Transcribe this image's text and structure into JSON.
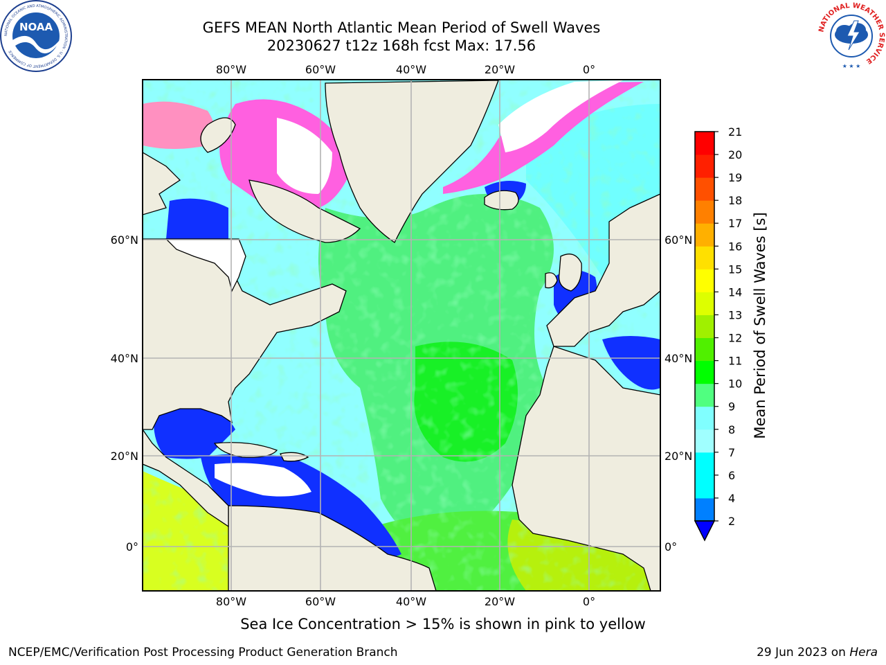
{
  "title": {
    "line1": "GEFS MEAN North Atlantic Mean Period of Swell Waves",
    "line2": "20230627 t12z 168h fcst   Max: 17.56"
  },
  "map": {
    "lon_labels": [
      "80°W",
      "60°W",
      "40°W",
      "20°W",
      "0°"
    ],
    "lat_labels": [
      "60°N",
      "40°N",
      "20°N",
      "0°"
    ],
    "ocean_base_color": "#00ffff",
    "land_color": "#efeddf"
  },
  "colorbar": {
    "title": "Mean Period of Swell Waves [s]",
    "tick_labels": [
      "2",
      "4",
      "6",
      "7",
      "8",
      "9",
      "10",
      "11",
      "12",
      "13",
      "14",
      "15",
      "16",
      "17",
      "18",
      "19",
      "20",
      "21"
    ],
    "colors": [
      "#0000ff",
      "#0080ff",
      "#00ffff",
      "#00ffff",
      "#a0ffff",
      "#80ffff",
      "#50ff80",
      "#00ff00",
      "#50f000",
      "#a0f000",
      "#ddff00",
      "#ffff00",
      "#ffe000",
      "#ffb000",
      "#ff8000",
      "#ff5000",
      "#ff2000",
      "#ff0000"
    ],
    "extend_color": "#0000ff"
  },
  "note": "Sea Ice Concentration > 15% is shown in pink to yellow",
  "footer": {
    "left": "NCEP/EMC/Verification Post Processing Product Generation Branch",
    "date": "29 Jun 2023 on ",
    "machine": "Hera"
  },
  "logos": {
    "noaa_text": "NOAA",
    "noaa_ring_text": "NATIONAL OCEANIC AND ATMOSPHERIC ADMINISTRATION · U.S. DEPARTMENT OF COMMERCE",
    "nws_ring_text": "NATIONAL WEATHER SERVICE"
  }
}
